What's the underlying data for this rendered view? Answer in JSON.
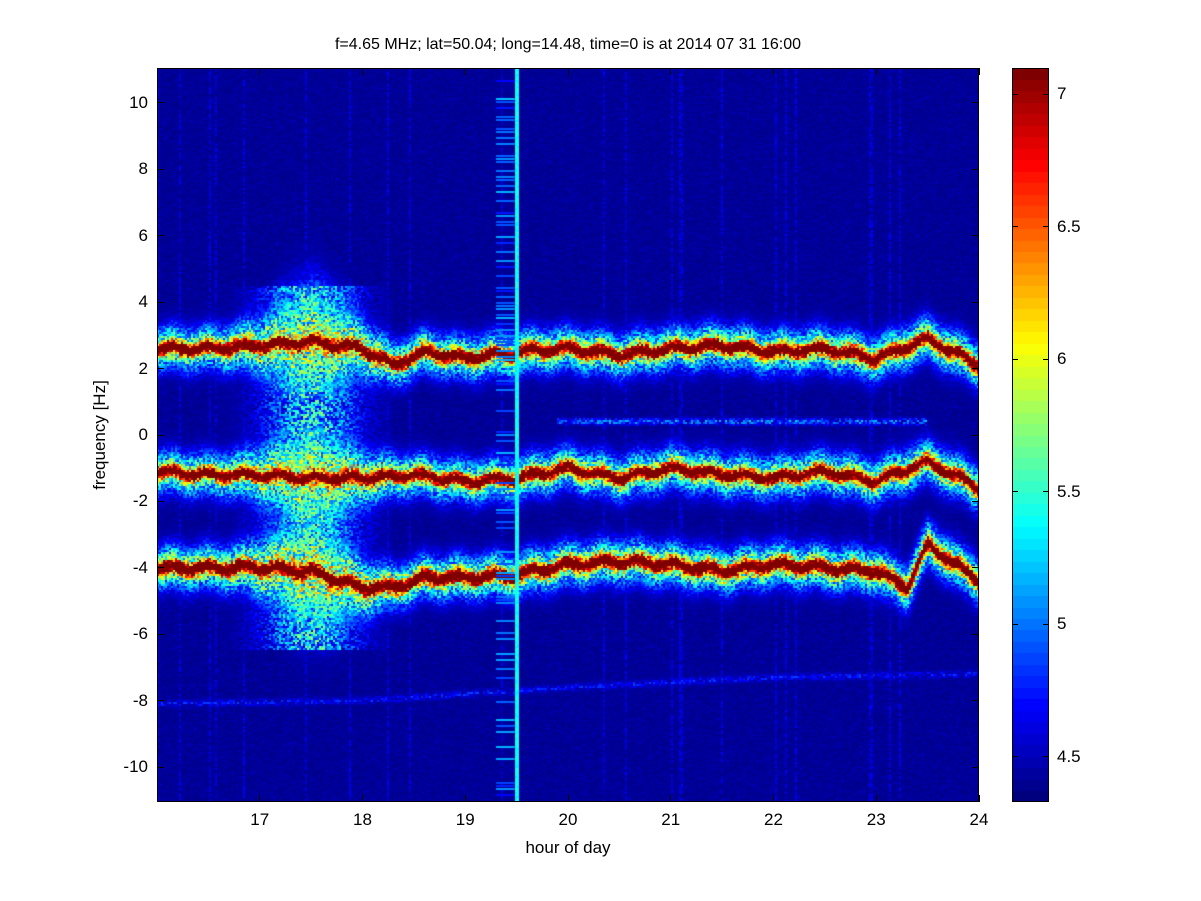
{
  "chart_data": {
    "type": "heatmap",
    "title": "f=4.65 MHz;  lat=50.04; long=14.48, time=0 is at 2014 07 31 16:00",
    "xlabel": "hour of day",
    "ylabel": "frequency [Hz]",
    "xlim": [
      16.0,
      24.0
    ],
    "ylim": [
      -11.05,
      11.05
    ],
    "xticks": [
      "17",
      "18",
      "19",
      "20",
      "21",
      "22",
      "23",
      "24"
    ],
    "xtick_values": [
      17,
      18,
      19,
      20,
      21,
      22,
      23,
      24
    ],
    "yticks": [
      "-10",
      "-8",
      "-6",
      "-4",
      "-2",
      "0",
      "2",
      "4",
      "6",
      "8",
      "10"
    ],
    "ytick_values": [
      -10,
      -8,
      -6,
      -4,
      -2,
      0,
      2,
      4,
      6,
      8,
      10
    ],
    "colormap": "jet",
    "clim": [
      4.33,
      7.1
    ],
    "colorbar_ticks": [
      "4.5",
      "5",
      "5.5",
      "6",
      "6.5",
      "7"
    ],
    "colorbar_tick_values": [
      4.5,
      5,
      5.5,
      6,
      6.5,
      7
    ],
    "background_level": 4.4,
    "data_gap": {
      "from_hour": 19.3,
      "to_hour": 19.48
    },
    "bright_column": {
      "hour": 19.5,
      "level": 5.4
    },
    "bands": [
      {
        "name": "upper echo",
        "hours": [
          16,
          16.5,
          17,
          17.5,
          18,
          18.3,
          18.6,
          19,
          19.5,
          20,
          20.5,
          21,
          21.5,
          22,
          22.5,
          23,
          23.5,
          24
        ],
        "freq": [
          2.6,
          2.6,
          2.7,
          2.8,
          2.6,
          2.1,
          2.5,
          2.3,
          2.5,
          2.6,
          2.4,
          2.6,
          2.7,
          2.5,
          2.6,
          2.3,
          2.9,
          2.1
        ],
        "peak": 7.0
      },
      {
        "name": "middle echo",
        "hours": [
          16,
          16.5,
          17,
          17.5,
          18,
          18.5,
          19,
          19.5,
          20,
          20.5,
          21,
          21.5,
          22,
          22.5,
          23,
          23.5,
          24
        ],
        "freq": [
          -1.1,
          -1.2,
          -1.2,
          -1.3,
          -1.3,
          -1.2,
          -1.4,
          -1.3,
          -1.0,
          -1.3,
          -1.0,
          -1.2,
          -1.3,
          -1.1,
          -1.4,
          -0.8,
          -1.6
        ],
        "peak": 6.9
      },
      {
        "name": "lower echo",
        "hours": [
          16,
          16.5,
          17,
          17.5,
          18,
          18.3,
          18.6,
          19,
          19.5,
          20,
          20.5,
          21,
          21.5,
          22,
          22.5,
          23,
          23.3,
          23.5,
          24
        ],
        "freq": [
          -4.0,
          -4.0,
          -4.0,
          -4.1,
          -4.6,
          -4.6,
          -4.3,
          -4.3,
          -4.2,
          -3.9,
          -3.8,
          -3.9,
          -4.1,
          -3.9,
          -4.0,
          -4.1,
          -4.6,
          -3.3,
          -4.4
        ],
        "peak": 7.1
      },
      {
        "name": "faint line",
        "hours": [
          16,
          18,
          20,
          22,
          24
        ],
        "freq": [
          -8.1,
          -8.0,
          -7.6,
          -7.3,
          -7.2
        ],
        "peak": 4.9
      }
    ],
    "diffuse_region": {
      "from_hour": 16.0,
      "to_hour": 18.3,
      "center_hour": 17.5
    }
  }
}
